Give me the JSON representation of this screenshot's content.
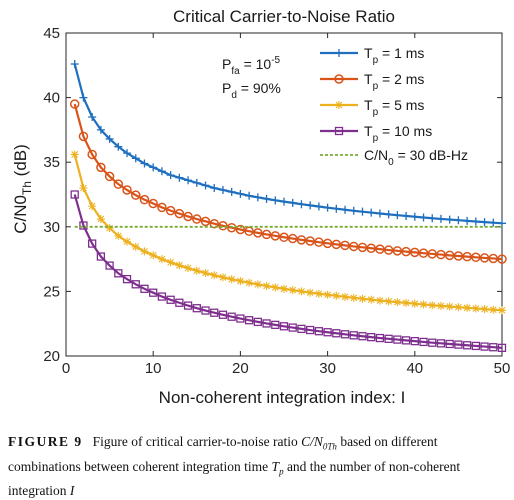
{
  "chart_data": {
    "type": "line",
    "title": "Critical Carrier-to-Noise Ratio",
    "xlabel": "Non-coherent integration index: I",
    "ylabel_main": "C/N0",
    "ylabel_sub": "Th",
    "ylabel_unit": " (dB)",
    "xlim": [
      0,
      50
    ],
    "ylim": [
      20,
      45
    ],
    "xticks": [
      0,
      10,
      20,
      30,
      40,
      50
    ],
    "yticks": [
      20,
      25,
      30,
      35,
      40,
      45
    ],
    "grid": false,
    "legend_position": "top-right",
    "annotations": [
      {
        "main": "P",
        "sub": "fa",
        "rest": " = 10",
        "sup": "-5"
      },
      {
        "main": "P",
        "sub": "d",
        "rest": " = 90%",
        "sup": ""
      }
    ],
    "x": [
      1,
      2,
      3,
      4,
      5,
      6,
      7,
      8,
      9,
      10,
      11,
      12,
      13,
      14,
      15,
      16,
      17,
      18,
      19,
      20,
      21,
      22,
      23,
      24,
      25,
      26,
      27,
      28,
      29,
      30,
      31,
      32,
      33,
      34,
      35,
      36,
      37,
      38,
      39,
      40,
      41,
      42,
      43,
      44,
      45,
      46,
      47,
      48,
      49,
      50
    ],
    "series": [
      {
        "name_main": "T",
        "name_sub": "p",
        "name_rest": " = 1 ms",
        "color": "#1f6fbf",
        "marker": "plus",
        "values": [
          42.6,
          40.0,
          38.5,
          37.5,
          36.8,
          36.2,
          35.7,
          35.3,
          34.9,
          34.6,
          34.3,
          34.0,
          33.8,
          33.6,
          33.4,
          33.2,
          33.0,
          32.85,
          32.7,
          32.55,
          32.4,
          32.28,
          32.16,
          32.05,
          31.95,
          31.85,
          31.75,
          31.66,
          31.57,
          31.48,
          31.4,
          31.32,
          31.24,
          31.17,
          31.1,
          31.03,
          30.96,
          30.9,
          30.84,
          30.78,
          30.72,
          30.66,
          30.61,
          30.56,
          30.51,
          30.46,
          30.41,
          30.36,
          30.32,
          30.27
        ]
      },
      {
        "name_main": "T",
        "name_sub": "p",
        "name_rest": " = 2 ms",
        "color": "#d9541a",
        "marker": "circle",
        "values": [
          39.5,
          37.0,
          35.6,
          34.6,
          33.9,
          33.3,
          32.85,
          32.45,
          32.1,
          31.8,
          31.5,
          31.25,
          31.02,
          30.8,
          30.6,
          30.42,
          30.24,
          30.08,
          29.93,
          29.79,
          29.66,
          29.53,
          29.41,
          29.3,
          29.19,
          29.09,
          28.99,
          28.9,
          28.81,
          28.72,
          28.64,
          28.56,
          28.48,
          28.41,
          28.34,
          28.27,
          28.2,
          28.14,
          28.08,
          28.02,
          27.96,
          27.9,
          27.85,
          27.79,
          27.74,
          27.69,
          27.64,
          27.59,
          27.55,
          27.5
        ]
      },
      {
        "name_main": "T",
        "name_sub": "p",
        "name_rest": " = 5 ms",
        "color": "#edb120",
        "marker": "star",
        "values": [
          35.6,
          33.0,
          31.6,
          30.6,
          29.9,
          29.3,
          28.85,
          28.45,
          28.1,
          27.8,
          27.5,
          27.25,
          27.02,
          26.8,
          26.6,
          26.42,
          26.25,
          26.09,
          25.94,
          25.8,
          25.67,
          25.54,
          25.42,
          25.31,
          25.2,
          25.1,
          25.0,
          24.91,
          24.82,
          24.74,
          24.66,
          24.58,
          24.5,
          24.43,
          24.36,
          24.29,
          24.23,
          24.17,
          24.11,
          24.05,
          23.99,
          23.93,
          23.88,
          23.83,
          23.78,
          23.73,
          23.68,
          23.63,
          23.58,
          23.54
        ]
      },
      {
        "name_main": "T",
        "name_sub": "p",
        "name_rest": " = 10 ms",
        "color": "#7e2f8e",
        "marker": "square",
        "values": [
          32.5,
          30.1,
          28.7,
          27.7,
          27.0,
          26.4,
          25.95,
          25.55,
          25.2,
          24.9,
          24.6,
          24.35,
          24.12,
          23.9,
          23.7,
          23.52,
          23.35,
          23.19,
          23.04,
          22.9,
          22.77,
          22.64,
          22.52,
          22.41,
          22.3,
          22.2,
          22.1,
          22.01,
          21.92,
          21.84,
          21.76,
          21.68,
          21.6,
          21.53,
          21.46,
          21.39,
          21.33,
          21.27,
          21.21,
          21.15,
          21.09,
          21.03,
          20.98,
          20.93,
          20.88,
          20.83,
          20.78,
          20.73,
          20.68,
          20.63
        ]
      },
      {
        "name_main": "C/N",
        "name_sub": "0",
        "name_rest": " = 30 dB-Hz",
        "color": "#77ac30",
        "marker": "none",
        "dashed": true,
        "values": [
          30,
          30,
          30,
          30,
          30,
          30,
          30,
          30,
          30,
          30,
          30,
          30,
          30,
          30,
          30,
          30,
          30,
          30,
          30,
          30,
          30,
          30,
          30,
          30,
          30,
          30,
          30,
          30,
          30,
          30,
          30,
          30,
          30,
          30,
          30,
          30,
          30,
          30,
          30,
          30,
          30,
          30,
          30,
          30,
          30,
          30,
          30,
          30,
          30,
          30
        ]
      }
    ]
  },
  "caption": {
    "figure_label": "FIGURE 9",
    "text_1": "Figure of critical carrier-to-noise ratio ",
    "math_1": "C/N",
    "math_1_sub": "0Th",
    "text_2": " based on different combinations between coherent integration time ",
    "math_2": "T",
    "math_2_sub": "p",
    "text_3": " and the number of non-coherent integration ",
    "math_3": "I"
  }
}
